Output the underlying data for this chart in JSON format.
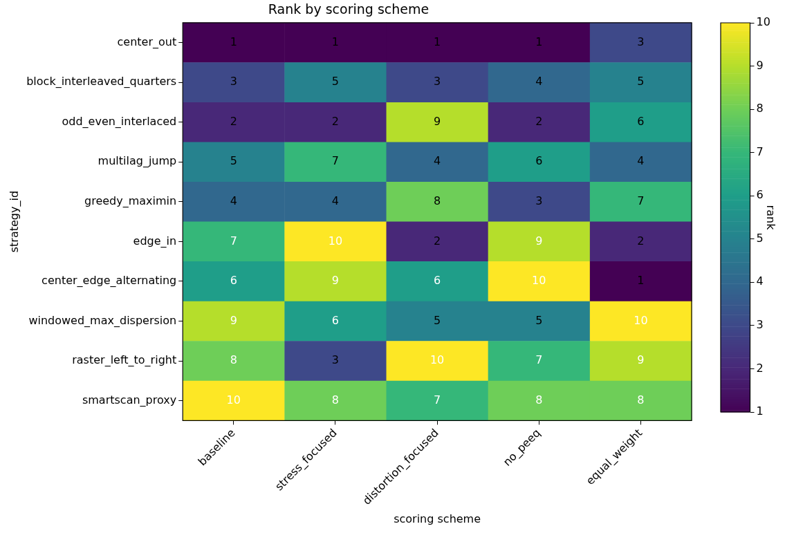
{
  "chart_data": {
    "type": "heatmap",
    "title": "Rank by scoring scheme",
    "xlabel": "scoring scheme",
    "ylabel": "strategy_id",
    "clabel": "rank",
    "categories": [
      "baseline",
      "stress_focused",
      "distortion_focused",
      "no_peeq",
      "equal_weight"
    ],
    "y_categories": [
      "center_out",
      "block_interleaved_quarters",
      "odd_even_interlaced",
      "multilag_jump",
      "greedy_maximin",
      "edge_in",
      "center_edge_alternating",
      "windowed_max_dispersion",
      "raster_left_to_right",
      "smartscan_proxy"
    ],
    "cells": [
      [
        1,
        1,
        1,
        1,
        3
      ],
      [
        3,
        5,
        3,
        4,
        5
      ],
      [
        2,
        2,
        9,
        2,
        6
      ],
      [
        5,
        7,
        4,
        6,
        4
      ],
      [
        4,
        4,
        8,
        3,
        7
      ],
      [
        7,
        10,
        2,
        9,
        2
      ],
      [
        6,
        9,
        6,
        10,
        1
      ],
      [
        9,
        6,
        5,
        5,
        10
      ],
      [
        8,
        3,
        10,
        7,
        9
      ],
      [
        10,
        8,
        7,
        8,
        8
      ]
    ],
    "clim": [
      1,
      10
    ],
    "cticks": [
      1,
      2,
      3,
      4,
      5,
      6,
      7,
      8,
      9,
      10
    ],
    "data_labels": true
  }
}
